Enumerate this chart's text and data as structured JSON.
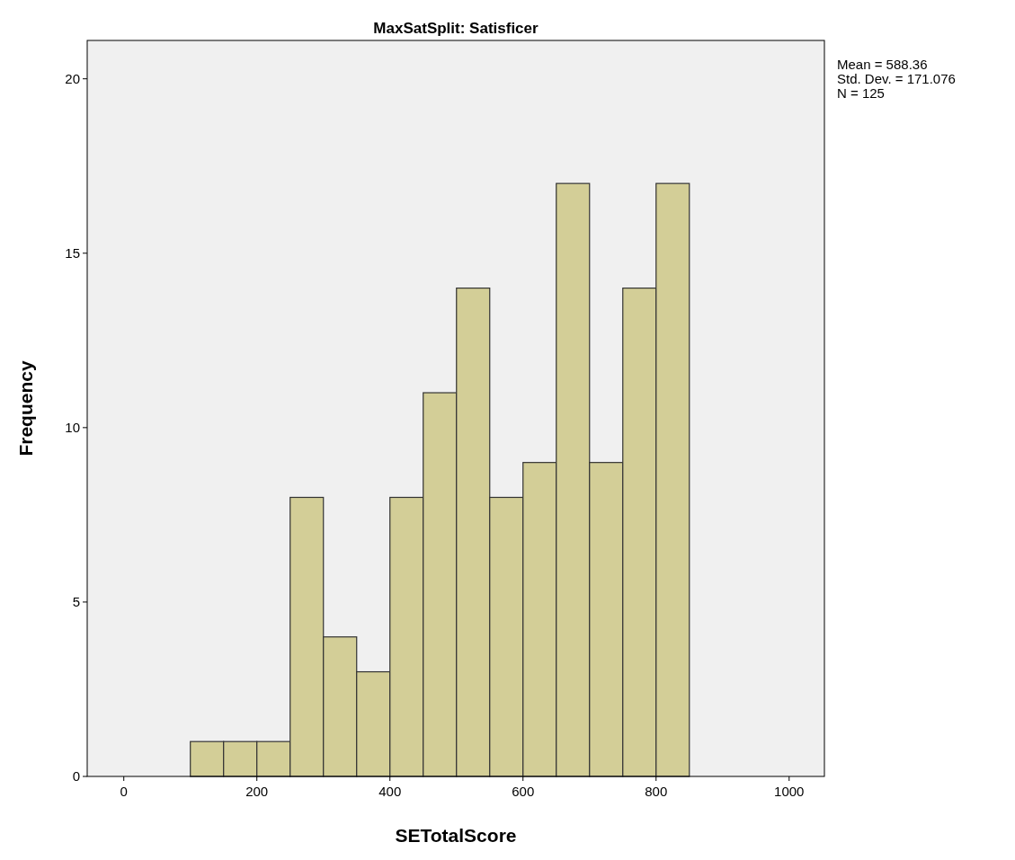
{
  "chart_data": {
    "type": "histogram",
    "title": "MaxSatSplit: Satisficer",
    "xlabel": "SETotalScore",
    "ylabel": "Frequency",
    "bins": [
      100,
      150,
      200,
      250,
      300,
      350,
      400,
      450,
      500,
      550,
      600,
      650,
      700,
      750,
      800,
      850
    ],
    "values": [
      1,
      1,
      1,
      8,
      4,
      3,
      8,
      11,
      14,
      8,
      9,
      17,
      9,
      14,
      17
    ],
    "color": "#d3ce97",
    "xlim": [
      -55,
      1053
    ],
    "xticks": [
      0,
      200,
      400,
      600,
      800,
      1000
    ],
    "ylim": [
      0,
      21.1
    ],
    "yticks": [
      0,
      5,
      10,
      15,
      20
    ],
    "grid": false,
    "annotations": [
      "Mean = 588.36",
      "Std. Dev. = 171.076",
      "N = 125"
    ]
  }
}
